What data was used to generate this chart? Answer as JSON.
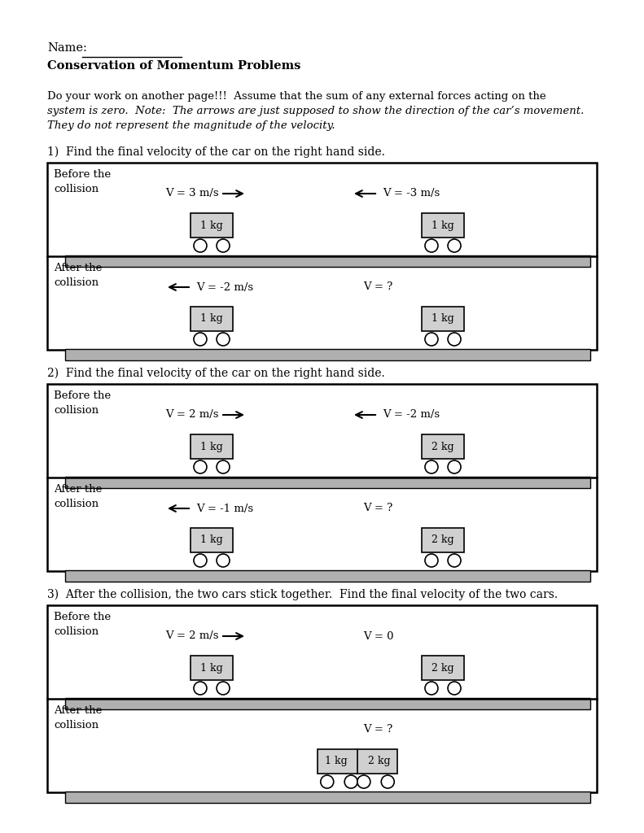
{
  "title_name": "Name:",
  "title_bold": "Conservation of Momentum Problems",
  "intro_line1": "Do your work on another page!!!  Assume that the sum of any external forces acting on the",
  "intro_line2": "system is zero.  Note:  The arrows are just supposed to show the direction of the car’s movement.",
  "intro_line3": "They do not represent the magnitude of the velocity.",
  "problems": [
    {
      "number": "1)",
      "question": "Find the final velocity of the car on the right hand side.",
      "before": {
        "left_v": "V = 3 m/s",
        "left_arrow": "right",
        "left_mass": "1 kg",
        "right_v": "V = -3 m/s",
        "right_arrow": "left",
        "right_mass": "1 kg"
      },
      "after": {
        "left_v": "V = -2 m/s",
        "left_arrow": "left",
        "left_mass": "1 kg",
        "right_v": "V = ?",
        "right_arrow": "none",
        "right_mass": "1 kg"
      },
      "combined": false
    },
    {
      "number": "2)",
      "question": "Find the final velocity of the car on the right hand side.",
      "before": {
        "left_v": "V = 2 m/s",
        "left_arrow": "right",
        "left_mass": "1 kg",
        "right_v": "V = -2 m/s",
        "right_arrow": "left",
        "right_mass": "2 kg"
      },
      "after": {
        "left_v": "V = -1 m/s",
        "left_arrow": "left",
        "left_mass": "1 kg",
        "right_v": "V = ?",
        "right_arrow": "none",
        "right_mass": "2 kg"
      },
      "combined": false
    },
    {
      "number": "3)",
      "question": "After the collision, the two cars stick together.  Find the final velocity of the two cars.",
      "before": {
        "left_v": "V = 2 m/s",
        "left_arrow": "right",
        "left_mass": "1 kg",
        "right_v": "V = 0",
        "right_arrow": "none",
        "right_mass": "2 kg"
      },
      "after": {
        "combined_v": "V = ?",
        "combined_mass_left": "1 kg",
        "combined_mass_right": "2 kg"
      },
      "combined": true
    }
  ]
}
